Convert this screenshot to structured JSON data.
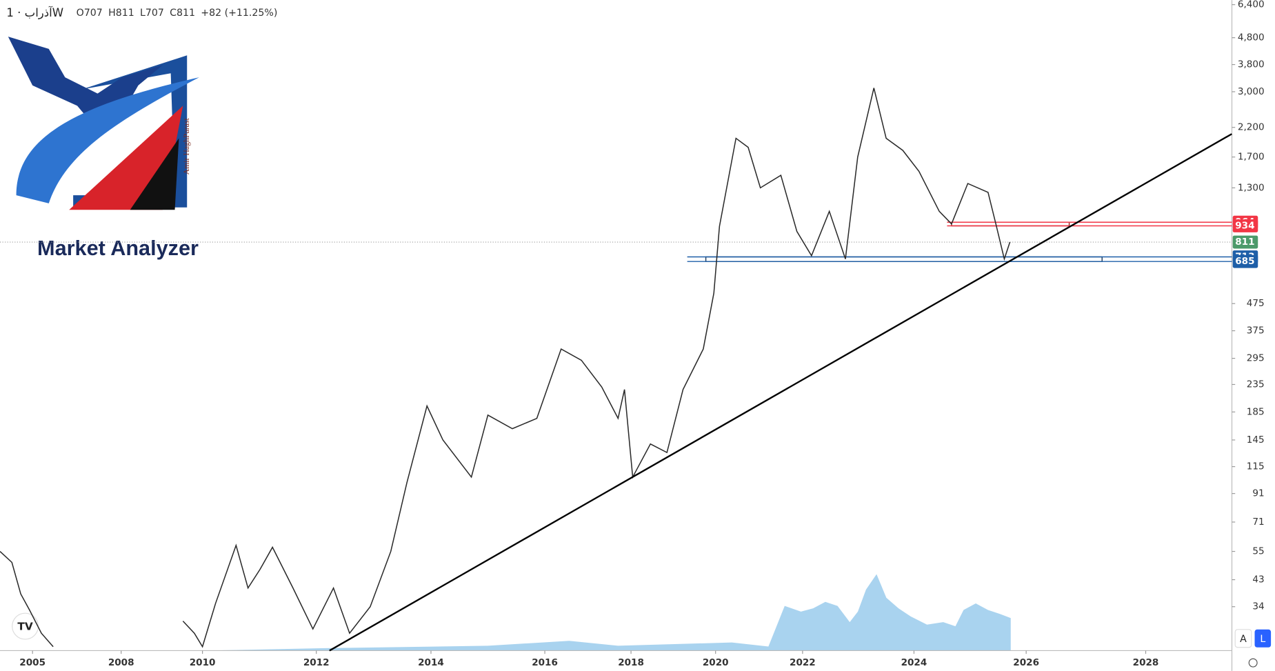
{
  "header": {
    "title": "آذراب · 1W",
    "ohlc": [
      {
        "label": "O",
        "value": 707
      },
      {
        "label": "H",
        "value": 811
      },
      {
        "label": "L",
        "value": 707
      },
      {
        "label": "C",
        "value": 811
      }
    ],
    "change": "+82 (+11.25%)"
  },
  "logo": {
    "title": "Market Analyzer",
    "author": "Amir HaghParast"
  },
  "buttons": [
    "A",
    "L"
  ],
  "chart_data": {
    "type": "line",
    "log_scale": true,
    "color": "#2a2a2a",
    "x": [
      2003.9,
      2004.3,
      2004.6,
      2004.9,
      2005.3,
      2005.7,
      null,
      2009.52,
      2009.8,
      2010.0,
      2010.23,
      2010.59,
      2010.8,
      2011.01,
      2011.23,
      2011.59,
      2011.94,
      2012.3,
      2012.58,
      2012.94,
      2013.3,
      2013.58,
      2013.93,
      2014.21,
      2014.71,
      2015.0,
      2015.43,
      2015.86,
      2016.38,
      2016.85,
      2017.32,
      2017.7,
      2017.85,
      2018.04,
      2018.46,
      2018.85,
      2019.23,
      2019.71,
      2019.96,
      2020.09,
      2020.47,
      2020.75,
      2021.03,
      2021.5,
      2021.87,
      2022.16,
      2022.48,
      2022.77,
      2022.99,
      2023.28,
      2023.5,
      2023.8,
      2024.09,
      2024.45,
      2024.67,
      2024.96,
      2025.32,
      2025.46,
      2025.61,
      2025.71
    ],
    "values": [
      55,
      50,
      38,
      33,
      27,
      24,
      null,
      30,
      27,
      24,
      35,
      58,
      40,
      47,
      57,
      40,
      28,
      40,
      27,
      34,
      55,
      100,
      195,
      145,
      105,
      180,
      160,
      175,
      320,
      290,
      230,
      175,
      225,
      105,
      140,
      130,
      225,
      320,
      520,
      930,
      2000,
      1850,
      1300,
      1450,
      890,
      720,
      1060,
      700,
      1700,
      3100,
      2000,
      1800,
      1500,
      1060,
      950,
      1350,
      1250,
      950,
      700,
      811
    ],
    "xticks": [
      2005,
      2008,
      2010,
      2012,
      2014,
      2016,
      2018,
      2020,
      2022,
      2024,
      2026,
      2028
    ],
    "ylim": [
      23.2,
      6660
    ],
    "yticks": [
      {
        "value": 6400,
        "label": "6,400"
      },
      {
        "value": 4800,
        "label": "4,800"
      },
      {
        "value": 3800,
        "label": "3,800"
      },
      {
        "value": 3000,
        "label": "3,000"
      },
      {
        "value": 2200,
        "label": "2,200"
      },
      {
        "value": 1700,
        "label": "1,700"
      },
      {
        "value": 1300,
        "label": "1,300"
      },
      475,
      375,
      295,
      235,
      185,
      145,
      115,
      91,
      71,
      55,
      43,
      34
    ],
    "trendline": {
      "x": [
        2012.23,
        2029.44
      ],
      "values": [
        23.2,
        2078
      ],
      "color": "#000000"
    },
    "zones": [
      {
        "x": [
          2024.67,
          2026.72
        ],
        "range": [
          934,
          964
        ],
        "color": "#8b1a1a"
      },
      {
        "x": [
          2019.77,
          2027.27
        ],
        "range": [
          685,
          713
        ],
        "color": "#1f3b5a"
      }
    ],
    "levels": [
      {
        "value": 964,
        "start": 2024.59,
        "color": "#f23645"
      },
      {
        "value": 934,
        "start": 2024.59,
        "color": "#f23645"
      },
      {
        "value": 713,
        "start": 2019.33,
        "color": "#1e5fa8"
      },
      {
        "value": 685,
        "start": 2019.33,
        "color": "#1e5fa8"
      }
    ],
    "last_price": {
      "value": 811,
      "color": "#4c9a6a"
    }
  }
}
